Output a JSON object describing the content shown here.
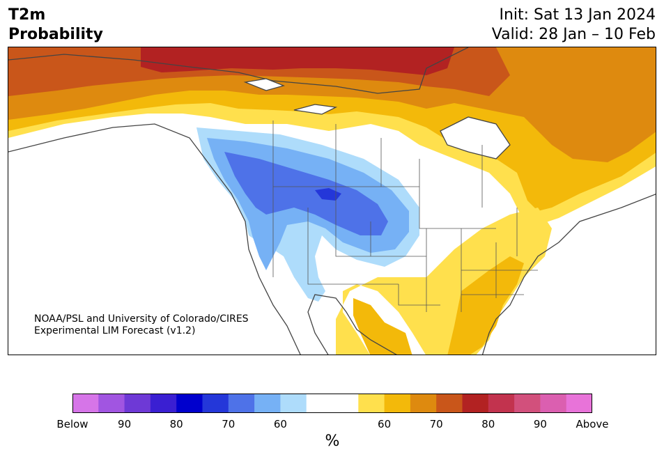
{
  "title": {
    "line1": "T2m",
    "line2": "Probability"
  },
  "init": "Init: Sat 13 Jan 2024",
  "valid": "Valid: 28 Jan – 10 Feb",
  "credit": {
    "line1": "NOAA/PSL and University of Colorado/CIRES",
    "line2": "Experimental LIM Forecast (v1.2)"
  },
  "colorbar": {
    "colors": [
      "#d675e8",
      "#a155e1",
      "#6e39d6",
      "#3a1fd2",
      "#0000cd",
      "#2437d9",
      "#4e72e8",
      "#76b1f5",
      "#aedcfb",
      "#ffffff",
      "#ffffff",
      "#ffe04d",
      "#f3b90a",
      "#de8a0f",
      "#c9561a",
      "#b22222",
      "#c2334e",
      "#d2507c",
      "#db5fb0",
      "#e873d9"
    ],
    "labels": [
      "Below",
      "90",
      "80",
      "70",
      "60",
      "60",
      "70",
      "80",
      "90",
      "Above"
    ],
    "unit": "%"
  },
  "map": {
    "region": "North America",
    "water": "#ffffff",
    "land_outline": "#444444",
    "above_colors": {
      "60": "#ffe04d",
      "65": "#f3b90a",
      "70": "#de8a0f",
      "75": "#c9561a",
      "80": "#b22222"
    },
    "below_colors": {
      "55": "#aedcfb",
      "60": "#76b1f5",
      "65": "#4e72e8",
      "75": "#2437d9"
    }
  }
}
